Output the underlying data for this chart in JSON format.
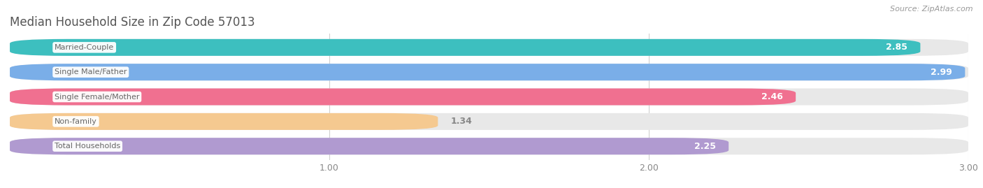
{
  "title": "Median Household Size in Zip Code 57013",
  "source": "Source: ZipAtlas.com",
  "categories": [
    "Married-Couple",
    "Single Male/Father",
    "Single Female/Mother",
    "Non-family",
    "Total Households"
  ],
  "values": [
    2.85,
    2.99,
    2.46,
    1.34,
    2.25
  ],
  "bar_colors": [
    "#3dbfbf",
    "#7aaee8",
    "#f07090",
    "#f5c990",
    "#b09ad0"
  ],
  "value_label_inside": [
    true,
    true,
    true,
    false,
    true
  ],
  "xmin": 0.0,
  "xmax": 3.0,
  "xticks": [
    1.0,
    2.0,
    3.0
  ],
  "bar_height": 0.68,
  "bar_gap": 0.12,
  "background_color": "#ffffff",
  "bar_bg_color": "#e8e8e8",
  "value_label_white": "#ffffff",
  "value_label_dark": "#888888",
  "category_label_color": "#666666",
  "title_color": "#555555",
  "source_color": "#999999",
  "title_fontsize": 12,
  "source_fontsize": 8,
  "bar_label_fontsize": 8,
  "value_fontsize": 9,
  "rounding_size": 0.18
}
